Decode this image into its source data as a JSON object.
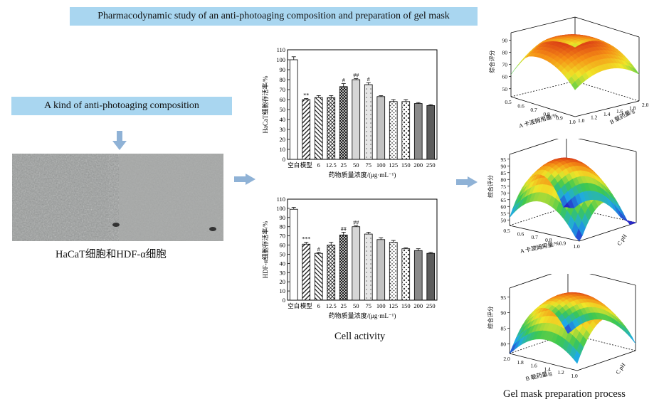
{
  "header": {
    "title": "Pharmacodynamic study of an anti-photoaging composition and preparation of gel mask"
  },
  "left": {
    "composition_label": "A kind of anti-photoaging composition",
    "cell_caption": "HaCaT细胞和HDF-α细胞"
  },
  "middle": {
    "caption": "Cell activity"
  },
  "right": {
    "caption": "Gel mask preparation process"
  },
  "colors": {
    "box_bg": "#a9d6f0",
    "arrow": "#8fb2d6"
  },
  "chart_data": [
    {
      "type": "bar",
      "ylabel": "HaCaT细胞存活率/%",
      "xlabel": "药物质量浓度/(μg·mL⁻¹)",
      "categories": [
        "空白",
        "模型",
        "6",
        "12.5",
        "25",
        "50",
        "75",
        "100",
        "125",
        "150",
        "200",
        "250"
      ],
      "values": [
        100,
        60,
        62,
        62,
        73,
        80,
        75,
        63,
        58,
        58,
        56,
        54
      ],
      "errors": [
        3,
        1,
        2,
        2,
        3,
        1,
        2,
        1,
        2,
        2,
        1,
        1
      ],
      "annotations": [
        "",
        "**",
        "",
        "",
        "#",
        "##",
        "#",
        "",
        "",
        "",
        "",
        ""
      ],
      "ylim": [
        0,
        110
      ],
      "yticks": [
        0,
        10,
        20,
        30,
        40,
        50,
        60,
        70,
        80,
        90,
        100,
        110
      ]
    },
    {
      "type": "bar",
      "ylabel": "HDF-α细胞存活率/%",
      "xlabel": "药物质量浓度/(μg·mL⁻¹)",
      "categories": [
        "空白",
        "模型",
        "6",
        "12.5",
        "25",
        "50",
        "75",
        "100",
        "125",
        "150",
        "200",
        "250"
      ],
      "values": [
        99,
        61,
        51,
        60,
        71,
        80,
        72,
        66,
        63,
        56,
        54,
        51
      ],
      "errors": [
        2,
        2,
        1,
        3,
        3,
        1,
        2,
        2,
        2,
        1,
        2,
        1
      ],
      "annotations": [
        "",
        "***",
        "#",
        "",
        "##",
        "##",
        "",
        "",
        "",
        "",
        "",
        ""
      ],
      "ylim": [
        0,
        110
      ],
      "yticks": [
        0,
        10,
        20,
        30,
        40,
        50,
        60,
        70,
        80,
        90,
        100,
        110
      ]
    },
    {
      "type": "surface",
      "zlabel": "综合评分",
      "xlabel": "A 卡波姆用量/%",
      "ylabel": "B 载药量/g",
      "zticks": [
        "50",
        "60",
        "70",
        "80",
        "90"
      ],
      "xticks": [
        "0.5",
        "0.6",
        "0.7",
        "0.8",
        "0.9",
        "1.0"
      ],
      "yticks": [
        "1.0",
        "1.2",
        "1.4",
        "1.6",
        "1.8",
        "2.0"
      ]
    },
    {
      "type": "surface",
      "zlabel": "综合评分",
      "xlabel": "A 卡波姆用量/%",
      "ylabel": "C pH",
      "zticks": [
        "50",
        "55",
        "60",
        "65",
        "70",
        "75",
        "80",
        "85",
        "90",
        "95"
      ],
      "xticks": [
        "0.5",
        "0.6",
        "0.7",
        "0.8",
        "0.9",
        "1.0"
      ],
      "yticks": []
    },
    {
      "type": "surface",
      "zlabel": "综合评分",
      "xlabel": "B 载药量/g",
      "ylabel": "C pH",
      "zticks": [
        "80",
        "85",
        "90",
        "95"
      ],
      "xticks": [
        "2.0",
        "1.8",
        "1.6",
        "1.4",
        "1.2",
        "1.0"
      ],
      "yticks": []
    }
  ]
}
